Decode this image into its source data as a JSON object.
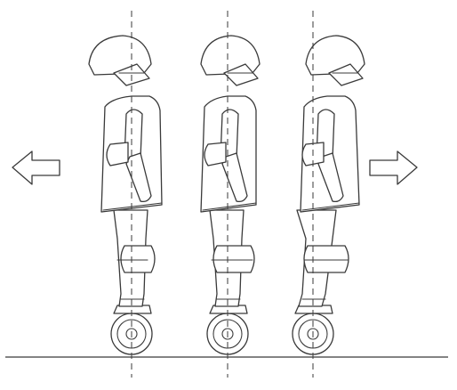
{
  "diagram": {
    "colors": {
      "stroke": "#3a3a3a",
      "background": "#ffffff"
    },
    "figures": [
      {
        "name": "rider-leaning-back",
        "posture": "back"
      },
      {
        "name": "rider-upright",
        "posture": "neutral"
      },
      {
        "name": "rider-leaning-forward",
        "posture": "forward"
      }
    ],
    "arrows": [
      {
        "name": "arrow-left-icon",
        "direction": "left",
        "meaning": "backward"
      },
      {
        "name": "arrow-right-icon",
        "direction": "right",
        "meaning": "forward"
      }
    ]
  }
}
